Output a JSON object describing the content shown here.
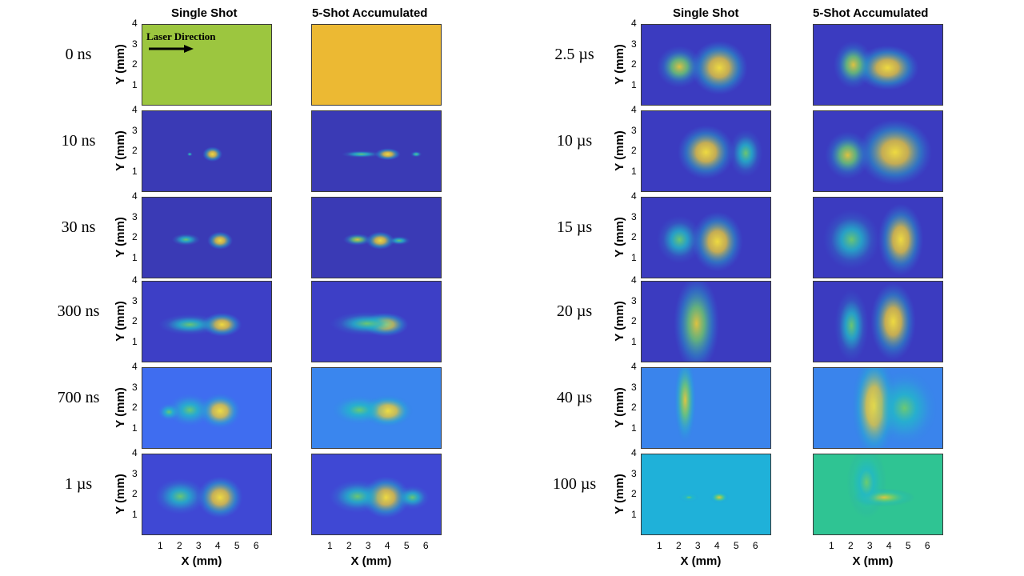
{
  "column_titles": {
    "left_single": "Single Shot",
    "left_accum": "5-Shot Accumulated",
    "right_single": "Single Shot",
    "right_accum": "5-Shot Accumulated"
  },
  "annotation": {
    "laser_direction": "Laser Direction"
  },
  "axes": {
    "ylabel": "Y (mm)",
    "xlabel": "X (mm)",
    "yticks": [
      "4",
      "3",
      "2",
      "1"
    ],
    "xticks": [
      "1",
      "2",
      "3",
      "4",
      "5",
      "6"
    ],
    "xlim": [
      0,
      6.8
    ],
    "ylim": [
      0,
      4
    ]
  },
  "colormap_colors": [
    "#3b3bbf",
    "#2f7fdf",
    "#22b8c8",
    "#6dcc6d",
    "#e6c83a",
    "#f7e23a"
  ],
  "left_times": [
    "0 ns",
    "10 ns",
    "30 ns",
    "300 ns",
    "700 ns",
    "1 µs"
  ],
  "right_times": [
    "2.5 µs",
    "10 µs",
    "15 µs",
    "20 µs",
    "40 µs",
    "100 µs"
  ],
  "chart_data": {
    "type": "heatmap",
    "description_units": "mm",
    "left_panels": [
      {
        "time": "0 ns",
        "single": {
          "bg": "#9cc63f",
          "blobs": []
        },
        "accum": {
          "bg": "#ecb933",
          "blobs": []
        }
      },
      {
        "time": "10 ns",
        "single": {
          "bg": "#3a3ab5",
          "blobs": [
            {
              "x": 3.7,
              "y": 1.85,
              "rx": 0.35,
              "ry": 0.25,
              "i": 1.0
            },
            {
              "x": 2.5,
              "y": 1.85,
              "rx": 0.1,
              "ry": 0.07,
              "i": 0.3
            }
          ]
        },
        "accum": {
          "bg": "#3a3ab5",
          "blobs": [
            {
              "x": 4.0,
              "y": 1.85,
              "rx": 0.45,
              "ry": 0.2,
              "i": 1.0
            },
            {
              "x": 2.6,
              "y": 1.85,
              "rx": 0.7,
              "ry": 0.12,
              "i": 0.35
            },
            {
              "x": 5.5,
              "y": 1.85,
              "rx": 0.2,
              "ry": 0.1,
              "i": 0.3
            }
          ]
        }
      },
      {
        "time": "30 ns",
        "single": {
          "bg": "#3a3ab5",
          "blobs": [
            {
              "x": 4.1,
              "y": 1.85,
              "rx": 0.45,
              "ry": 0.3,
              "i": 1.0
            },
            {
              "x": 2.3,
              "y": 1.9,
              "rx": 0.5,
              "ry": 0.2,
              "i": 0.5
            }
          ]
        },
        "accum": {
          "bg": "#3a3ab5",
          "blobs": [
            {
              "x": 3.6,
              "y": 1.85,
              "rx": 0.5,
              "ry": 0.3,
              "i": 1.0
            },
            {
              "x": 2.4,
              "y": 1.9,
              "rx": 0.5,
              "ry": 0.2,
              "i": 0.6
            },
            {
              "x": 4.6,
              "y": 1.85,
              "rx": 0.4,
              "ry": 0.15,
              "i": 0.3
            }
          ]
        }
      },
      {
        "time": "300 ns",
        "single": {
          "bg": "#3d3fc6",
          "blobs": [
            {
              "x": 4.2,
              "y": 1.85,
              "rx": 0.7,
              "ry": 0.4,
              "i": 1.0
            },
            {
              "x": 2.5,
              "y": 1.85,
              "rx": 1.1,
              "ry": 0.35,
              "i": 0.35
            }
          ]
        },
        "accum": {
          "bg": "#3d3fc6",
          "blobs": [
            {
              "x": 3.9,
              "y": 1.85,
              "rx": 0.8,
              "ry": 0.4,
              "i": 0.9
            },
            {
              "x": 2.9,
              "y": 1.9,
              "rx": 1.3,
              "ry": 0.4,
              "i": 0.35
            }
          ]
        }
      },
      {
        "time": "700 ns",
        "single": {
          "bg": "#3f6df0",
          "blobs": [
            {
              "x": 4.1,
              "y": 1.85,
              "rx": 0.75,
              "ry": 0.6,
              "i": 0.85
            },
            {
              "x": 2.5,
              "y": 1.9,
              "rx": 0.8,
              "ry": 0.55,
              "i": 0.5
            },
            {
              "x": 1.4,
              "y": 1.8,
              "rx": 0.4,
              "ry": 0.3,
              "i": 0.2
            }
          ]
        },
        "accum": {
          "bg": "#3a86ee",
          "blobs": [
            {
              "x": 4.0,
              "y": 1.85,
              "rx": 0.9,
              "ry": 0.55,
              "i": 0.85
            },
            {
              "x": 2.5,
              "y": 1.9,
              "rx": 1.0,
              "ry": 0.5,
              "i": 0.35
            }
          ]
        }
      },
      {
        "time": "1 µs",
        "single": {
          "bg": "#3f48d4",
          "blobs": [
            {
              "x": 4.1,
              "y": 1.85,
              "rx": 0.8,
              "ry": 0.7,
              "i": 1.0
            },
            {
              "x": 2.0,
              "y": 1.9,
              "rx": 0.9,
              "ry": 0.6,
              "i": 0.5
            }
          ]
        },
        "accum": {
          "bg": "#3f48d4",
          "blobs": [
            {
              "x": 3.9,
              "y": 1.85,
              "rx": 0.85,
              "ry": 0.7,
              "i": 1.0
            },
            {
              "x": 2.4,
              "y": 1.9,
              "rx": 1.0,
              "ry": 0.55,
              "i": 0.45
            },
            {
              "x": 5.3,
              "y": 1.85,
              "rx": 0.6,
              "ry": 0.4,
              "i": 0.4
            }
          ]
        }
      }
    ],
    "right_panels": [
      {
        "time": "2.5 µs",
        "single": {
          "bg": "#3b3bc0",
          "blobs": [
            {
              "x": 4.1,
              "y": 1.85,
              "rx": 1.0,
              "ry": 0.9,
              "i": 1.0
            },
            {
              "x": 2.0,
              "y": 1.9,
              "rx": 0.8,
              "ry": 0.7,
              "i": 0.55
            }
          ]
        },
        "accum": {
          "bg": "#3b3bc0",
          "blobs": [
            {
              "x": 3.9,
              "y": 1.85,
              "rx": 1.1,
              "ry": 0.75,
              "i": 1.0
            },
            {
              "x": 2.1,
              "y": 2.0,
              "rx": 0.7,
              "ry": 0.8,
              "i": 0.55
            }
          ]
        }
      },
      {
        "time": "10 µs",
        "single": {
          "bg": "#3b3bc0",
          "blobs": [
            {
              "x": 3.4,
              "y": 1.95,
              "rx": 1.0,
              "ry": 0.9,
              "i": 0.9
            },
            {
              "x": 5.5,
              "y": 1.9,
              "rx": 0.6,
              "ry": 0.8,
              "i": 0.2
            }
          ]
        },
        "accum": {
          "bg": "#3b3bc0",
          "blobs": [
            {
              "x": 4.3,
              "y": 1.95,
              "rx": 1.3,
              "ry": 1.1,
              "i": 0.95
            },
            {
              "x": 1.8,
              "y": 1.8,
              "rx": 0.8,
              "ry": 0.8,
              "i": 0.55
            }
          ]
        }
      },
      {
        "time": "15 µs",
        "single": {
          "bg": "#3b3bc0",
          "blobs": [
            {
              "x": 4.0,
              "y": 1.8,
              "rx": 0.9,
              "ry": 1.0,
              "i": 0.9
            },
            {
              "x": 2.0,
              "y": 1.9,
              "rx": 0.8,
              "ry": 0.8,
              "i": 0.2
            }
          ]
        },
        "accum": {
          "bg": "#3b3bc0",
          "blobs": [
            {
              "x": 4.6,
              "y": 1.9,
              "rx": 0.8,
              "ry": 1.2,
              "i": 0.85
            },
            {
              "x": 2.0,
              "y": 1.9,
              "rx": 1.0,
              "ry": 1.0,
              "i": 0.35
            }
          ]
        }
      },
      {
        "time": "20 µs",
        "single": {
          "bg": "#3b3bc0",
          "blobs": [
            {
              "x": 2.9,
              "y": 1.9,
              "rx": 0.8,
              "ry": 1.6,
              "i": 0.8
            }
          ]
        },
        "accum": {
          "bg": "#3b3bc0",
          "blobs": [
            {
              "x": 4.2,
              "y": 2.0,
              "rx": 0.8,
              "ry": 1.3,
              "i": 0.85
            },
            {
              "x": 2.0,
              "y": 1.8,
              "rx": 0.6,
              "ry": 1.2,
              "i": 0.35
            }
          ]
        }
      },
      {
        "time": "40 µs",
        "single": {
          "bg": "#3a84ec",
          "blobs": [
            {
              "x": 2.3,
              "y": 2.4,
              "rx": 0.4,
              "ry": 1.5,
              "i": 0.8
            }
          ]
        },
        "accum": {
          "bg": "#3a84ec",
          "blobs": [
            {
              "x": 3.2,
              "y": 2.1,
              "rx": 0.8,
              "ry": 1.8,
              "i": 0.85
            },
            {
              "x": 4.8,
              "y": 2.0,
              "rx": 1.2,
              "ry": 1.3,
              "i": 0.2
            }
          ]
        }
      },
      {
        "time": "100 µs",
        "single": {
          "bg": "#1fb1d9",
          "blobs": [
            {
              "x": 4.1,
              "y": 1.85,
              "rx": 0.35,
              "ry": 0.2,
              "i": 0.55
            },
            {
              "x": 2.5,
              "y": 1.85,
              "rx": 0.35,
              "ry": 0.15,
              "i": 0.35
            }
          ]
        },
        "accum": {
          "bg": "#2fc493",
          "blobs": [
            {
              "x": 3.7,
              "y": 1.85,
              "rx": 1.1,
              "ry": 0.3,
              "i": 0.55
            },
            {
              "x": 2.8,
              "y": 2.6,
              "rx": 0.7,
              "ry": 1.2,
              "i": 0.2
            }
          ]
        }
      }
    ]
  }
}
